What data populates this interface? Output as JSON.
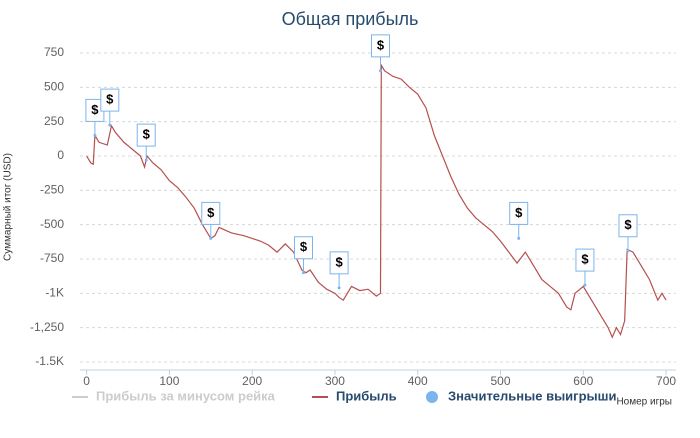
{
  "chart_data": {
    "type": "line",
    "title": "Общая прибыль",
    "y_label": "Суммарный итог (USD)",
    "x_label": "Номер игры",
    "xlim": [
      -8,
      712
    ],
    "xticks": [
      0,
      100,
      200,
      300,
      400,
      500,
      600,
      700
    ],
    "ylim": [
      -1500,
      750
    ],
    "yticks": [
      750,
      500,
      250,
      0,
      -250,
      -500,
      -750,
      {
        "value": -1000,
        "label": "-1K"
      },
      {
        "value": -1250,
        "label": "-1,250"
      },
      {
        "value": -1500,
        "label": "-1.5K"
      }
    ],
    "grid": true,
    "series": [
      {
        "name": "Прибыль за минусом рейка",
        "color": "#cccccc",
        "visible": false
      },
      {
        "name": "Прибыль",
        "color": "#b5504f",
        "visible": true,
        "x": [
          0,
          5,
          8,
          10,
          15,
          25,
          30,
          35,
          45,
          55,
          65,
          70,
          73,
          80,
          90,
          100,
          110,
          120,
          130,
          140,
          150,
          155,
          160,
          175,
          190,
          210,
          220,
          230,
          240,
          250,
          260,
          265,
          270,
          280,
          290,
          300,
          305,
          310,
          320,
          330,
          340,
          350,
          355,
          356,
          360,
          370,
          380,
          390,
          400,
          410,
          420,
          430,
          440,
          450,
          460,
          470,
          480,
          490,
          500,
          510,
          520,
          530,
          540,
          550,
          560,
          570,
          580,
          585,
          590,
          600,
          610,
          620,
          630,
          635,
          640,
          645,
          650,
          653,
          660,
          670,
          680,
          690,
          695,
          700
        ],
        "values": [
          0,
          -50,
          -60,
          150,
          100,
          80,
          220,
          170,
          100,
          50,
          0,
          -80,
          0,
          -50,
          -100,
          -180,
          -230,
          -300,
          -380,
          -500,
          -600,
          -580,
          -520,
          -560,
          -580,
          -620,
          -650,
          -700,
          -640,
          -700,
          -830,
          -850,
          -830,
          -920,
          -970,
          -1000,
          -1030,
          -1050,
          -950,
          -980,
          -970,
          -1020,
          -1000,
          660,
          620,
          580,
          560,
          500,
          450,
          350,
          150,
          0,
          -150,
          -280,
          -380,
          -450,
          -500,
          -550,
          -620,
          -700,
          -780,
          -700,
          -800,
          -900,
          -950,
          -1000,
          -1100,
          -1120,
          -1000,
          -950,
          -1050,
          -1150,
          -1250,
          -1320,
          -1250,
          -1300,
          -1200,
          -680,
          -700,
          -800,
          -900,
          -1050,
          -1000,
          -1050
        ]
      },
      {
        "name": "Значительные выигрыши",
        "color": "#7cb5ec",
        "visible": true,
        "flag_text": "$",
        "x": [
          10,
          28,
          72,
          150,
          262,
          305,
          355,
          522,
          602,
          654
        ],
        "values": [
          150,
          225,
          -30,
          -600,
          -850,
          -960,
          620,
          -600,
          -940,
          -690
        ]
      }
    ]
  }
}
